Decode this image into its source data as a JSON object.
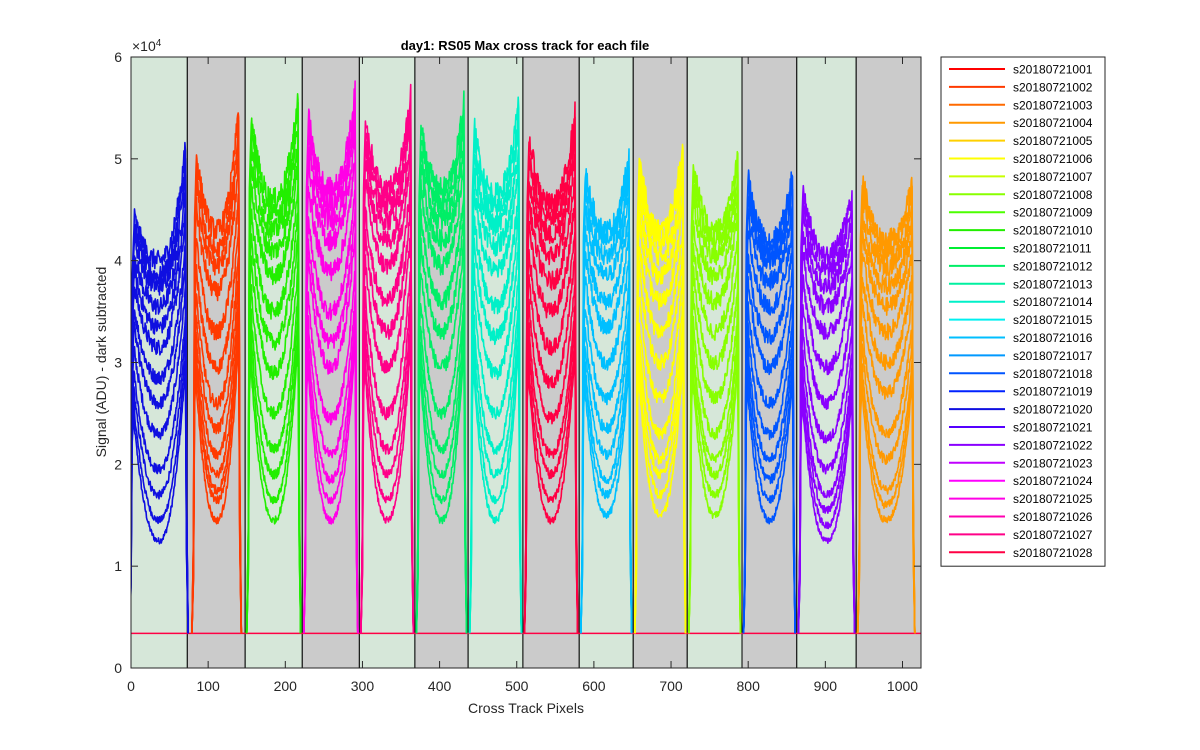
{
  "chart_data": {
    "type": "line",
    "title": "day1: RS05  Max cross track for each file",
    "xlabel": "Cross Track Pixels",
    "ylabel": "Signal (ADU) - dark subtracted",
    "y_exponent_label": "×10",
    "y_exponent_power": "4",
    "xlim": [
      0,
      1024
    ],
    "ylim": [
      0,
      60000
    ],
    "x_ticks": [
      0,
      100,
      200,
      300,
      400,
      500,
      600,
      700,
      800,
      900,
      1000
    ],
    "y_ticks": [
      0,
      1,
      2,
      3,
      4,
      5,
      6
    ],
    "y_tick_scale": 10000,
    "grid": false,
    "legend_position": "outside-right",
    "baseline_adu": 3400,
    "background_bands": [
      {
        "x": [
          0,
          73
        ],
        "shade": "green"
      },
      {
        "x": [
          73,
          148
        ],
        "shade": "gray"
      },
      {
        "x": [
          148,
          222
        ],
        "shade": "green"
      },
      {
        "x": [
          222,
          296
        ],
        "shade": "gray"
      },
      {
        "x": [
          296,
          368
        ],
        "shade": "green"
      },
      {
        "x": [
          368,
          437
        ],
        "shade": "gray"
      },
      {
        "x": [
          437,
          508
        ],
        "shade": "green"
      },
      {
        "x": [
          508,
          581
        ],
        "shade": "gray"
      },
      {
        "x": [
          581,
          651
        ],
        "shade": "green"
      },
      {
        "x": [
          651,
          721
        ],
        "shade": "gray"
      },
      {
        "x": [
          721,
          792
        ],
        "shade": "green"
      },
      {
        "x": [
          792,
          863
        ],
        "shade": "gray"
      },
      {
        "x": [
          863,
          940
        ],
        "shade": "green"
      },
      {
        "x": [
          940,
          1024
        ],
        "shade": "gray"
      }
    ],
    "band_colors": {
      "green": "#d6e7d9",
      "gray": "#cbcbcb"
    },
    "lobes": [
      {
        "x_range": [
          0,
          72
        ],
        "color": "#0f0fe0",
        "edge_left": 46000,
        "center": 41000,
        "edge_right": 52000,
        "min_levels": [
          12500,
          14500,
          17000,
          19500,
          23000,
          26000,
          28500,
          31500,
          33500,
          35500,
          37500,
          38500,
          40000
        ]
      },
      {
        "x_range": [
          81,
          141
        ],
        "color": "#ff3a00",
        "edge_left": 52000,
        "center": 43000,
        "edge_right": 55000,
        "min_levels": [
          14500,
          16500,
          17500,
          19000,
          21000,
          23500,
          26000,
          29500,
          33000,
          37000,
          39500,
          41000,
          43000
        ]
      },
      {
        "x_range": [
          152,
          218
        ],
        "color": "#22ee00",
        "edge_left": 55500,
        "center": 46000,
        "edge_right": 56000,
        "min_levels": [
          14500,
          16500,
          19000,
          21500,
          25000,
          29000,
          32000,
          35000,
          38500,
          41000,
          43000,
          44500,
          46000
        ]
      },
      {
        "x_range": [
          226,
          292
        ],
        "color": "#ff00e6",
        "edge_left": 55500,
        "center": 47000,
        "edge_right": 56500,
        "min_levels": [
          14500,
          16500,
          18500,
          21000,
          24500,
          29500,
          32000,
          35000,
          39000,
          42000,
          44000,
          45500,
          47000
        ]
      },
      {
        "x_range": [
          300,
          364
        ],
        "color": "#ff0088",
        "edge_left": 55500,
        "center": 47000,
        "edge_right": 56500,
        "min_levels": [
          14500,
          16500,
          19000,
          21500,
          25000,
          29500,
          33000,
          36000,
          39500,
          42000,
          44000,
          45500,
          47000
        ]
      },
      {
        "x_range": [
          372,
          433
        ],
        "color": "#00ee66",
        "edge_left": 54500,
        "center": 47000,
        "edge_right": 55500,
        "min_levels": [
          14500,
          16500,
          19000,
          21500,
          25000,
          29500,
          33000,
          36000,
          39500,
          42000,
          44000,
          45500,
          47000
        ]
      },
      {
        "x_range": [
          441,
          504
        ],
        "color": "#00f0c8",
        "edge_left": 54500,
        "center": 46500,
        "edge_right": 55500,
        "min_levels": [
          14500,
          16500,
          19000,
          21500,
          25000,
          29000,
          32500,
          35500,
          39000,
          41500,
          43500,
          45000,
          46500
        ]
      },
      {
        "x_range": [
          512,
          577
        ],
        "color": "#ff0044",
        "edge_left": 53500,
        "center": 45500,
        "edge_right": 54500,
        "min_levels": [
          14500,
          16500,
          19000,
          21000,
          24500,
          28000,
          31500,
          35000,
          38000,
          40500,
          42500,
          44000,
          45500
        ]
      },
      {
        "x_range": [
          585,
          647
        ],
        "color": "#00bfff",
        "edge_left": 50000,
        "center": 43000,
        "edge_right": 50500,
        "min_levels": [
          15000,
          17000,
          18500,
          21000,
          23500,
          26500,
          30000,
          33500,
          36000,
          38500,
          40500,
          42000,
          43000
        ]
      },
      {
        "x_range": [
          655,
          717
        ],
        "color": "#ffff00",
        "edge_left": 51500,
        "center": 43000,
        "edge_right": 51500,
        "min_levels": [
          15000,
          17000,
          19000,
          20500,
          23000,
          26500,
          30000,
          33000,
          36000,
          38500,
          40500,
          42000,
          43000
        ]
      },
      {
        "x_range": [
          725,
          788
        ],
        "color": "#88ff00",
        "edge_left": 51000,
        "center": 43000,
        "edge_right": 50000,
        "min_levels": [
          15000,
          17000,
          19000,
          20500,
          23000,
          26500,
          30000,
          33000,
          36000,
          38500,
          40500,
          42000,
          43000
        ]
      },
      {
        "x_range": [
          796,
          859
        ],
        "color": "#0055ff",
        "edge_left": 49500,
        "center": 42000,
        "edge_right": 48500,
        "min_levels": [
          14500,
          16500,
          18500,
          20500,
          23000,
          26000,
          29500,
          32500,
          35500,
          38000,
          40000,
          41000,
          42000
        ]
      },
      {
        "x_range": [
          867,
          936
        ],
        "color": "#8a00ff",
        "edge_left": 49000,
        "center": 41000,
        "edge_right": 47000,
        "min_levels": [
          12500,
          14000,
          15500,
          17000,
          19500,
          22500,
          26000,
          29500,
          33000,
          35500,
          37500,
          39000,
          40500
        ]
      },
      {
        "x_range": [
          944,
          1014
        ],
        "color": "#ff9900",
        "edge_left": 49500,
        "center": 42000,
        "edge_right": 47500,
        "min_levels": [
          14500,
          16000,
          17500,
          20500,
          23000,
          27000,
          30000,
          33000,
          35500,
          37500,
          39500,
          41000,
          42000
        ]
      }
    ],
    "series": [
      {
        "name": "s20180721001",
        "color": "#ff0000"
      },
      {
        "name": "s20180721002",
        "color": "#ff3a00"
      },
      {
        "name": "s20180721003",
        "color": "#ff6a00"
      },
      {
        "name": "s20180721004",
        "color": "#ff9900"
      },
      {
        "name": "s20180721005",
        "color": "#ffd000"
      },
      {
        "name": "s20180721006",
        "color": "#ffff00"
      },
      {
        "name": "s20180721007",
        "color": "#c8ff00"
      },
      {
        "name": "s20180721008",
        "color": "#88ff00"
      },
      {
        "name": "s20180721009",
        "color": "#4cff00"
      },
      {
        "name": "s20180721010",
        "color": "#22ee00"
      },
      {
        "name": "s20180721011",
        "color": "#00ee33"
      },
      {
        "name": "s20180721012",
        "color": "#00ee66"
      },
      {
        "name": "s20180721013",
        "color": "#00f0a0"
      },
      {
        "name": "s20180721014",
        "color": "#00f0c8"
      },
      {
        "name": "s20180721015",
        "color": "#00f0f0"
      },
      {
        "name": "s20180721016",
        "color": "#00bfff"
      },
      {
        "name": "s20180721017",
        "color": "#0099ff"
      },
      {
        "name": "s20180721018",
        "color": "#0055ff"
      },
      {
        "name": "s20180721019",
        "color": "#0022ff"
      },
      {
        "name": "s20180721020",
        "color": "#0f0fe0"
      },
      {
        "name": "s20180721021",
        "color": "#5500ff"
      },
      {
        "name": "s20180721022",
        "color": "#8a00ff"
      },
      {
        "name": "s20180721023",
        "color": "#c000ff"
      },
      {
        "name": "s20180721024",
        "color": "#ff00ff"
      },
      {
        "name": "s20180721025",
        "color": "#ff00e6"
      },
      {
        "name": "s20180721026",
        "color": "#ff00b0"
      },
      {
        "name": "s20180721027",
        "color": "#ff0088"
      },
      {
        "name": "s20180721028",
        "color": "#ff0044"
      }
    ]
  }
}
